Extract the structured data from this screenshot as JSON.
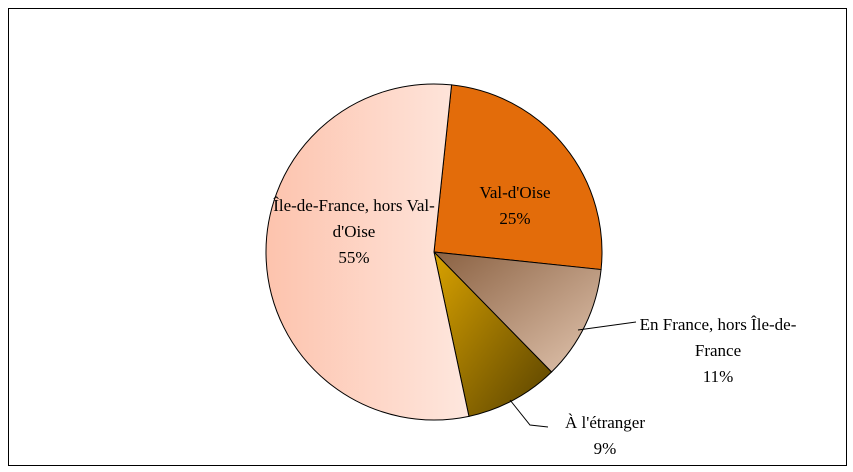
{
  "chart_data": {
    "type": "pie",
    "categories": [
      "Val-d'Oise",
      "En France, hors Île-de-France",
      "À l'étranger",
      "Île-de-France, hors Val-d'Oise"
    ],
    "values": [
      25,
      11,
      9,
      55
    ],
    "value_labels": [
      "25%",
      "11%",
      "9%",
      "55%"
    ],
    "colors": [
      "#e36c0a",
      "#c58a5e",
      "#d9a200",
      "#fdc3ad"
    ]
  }
}
